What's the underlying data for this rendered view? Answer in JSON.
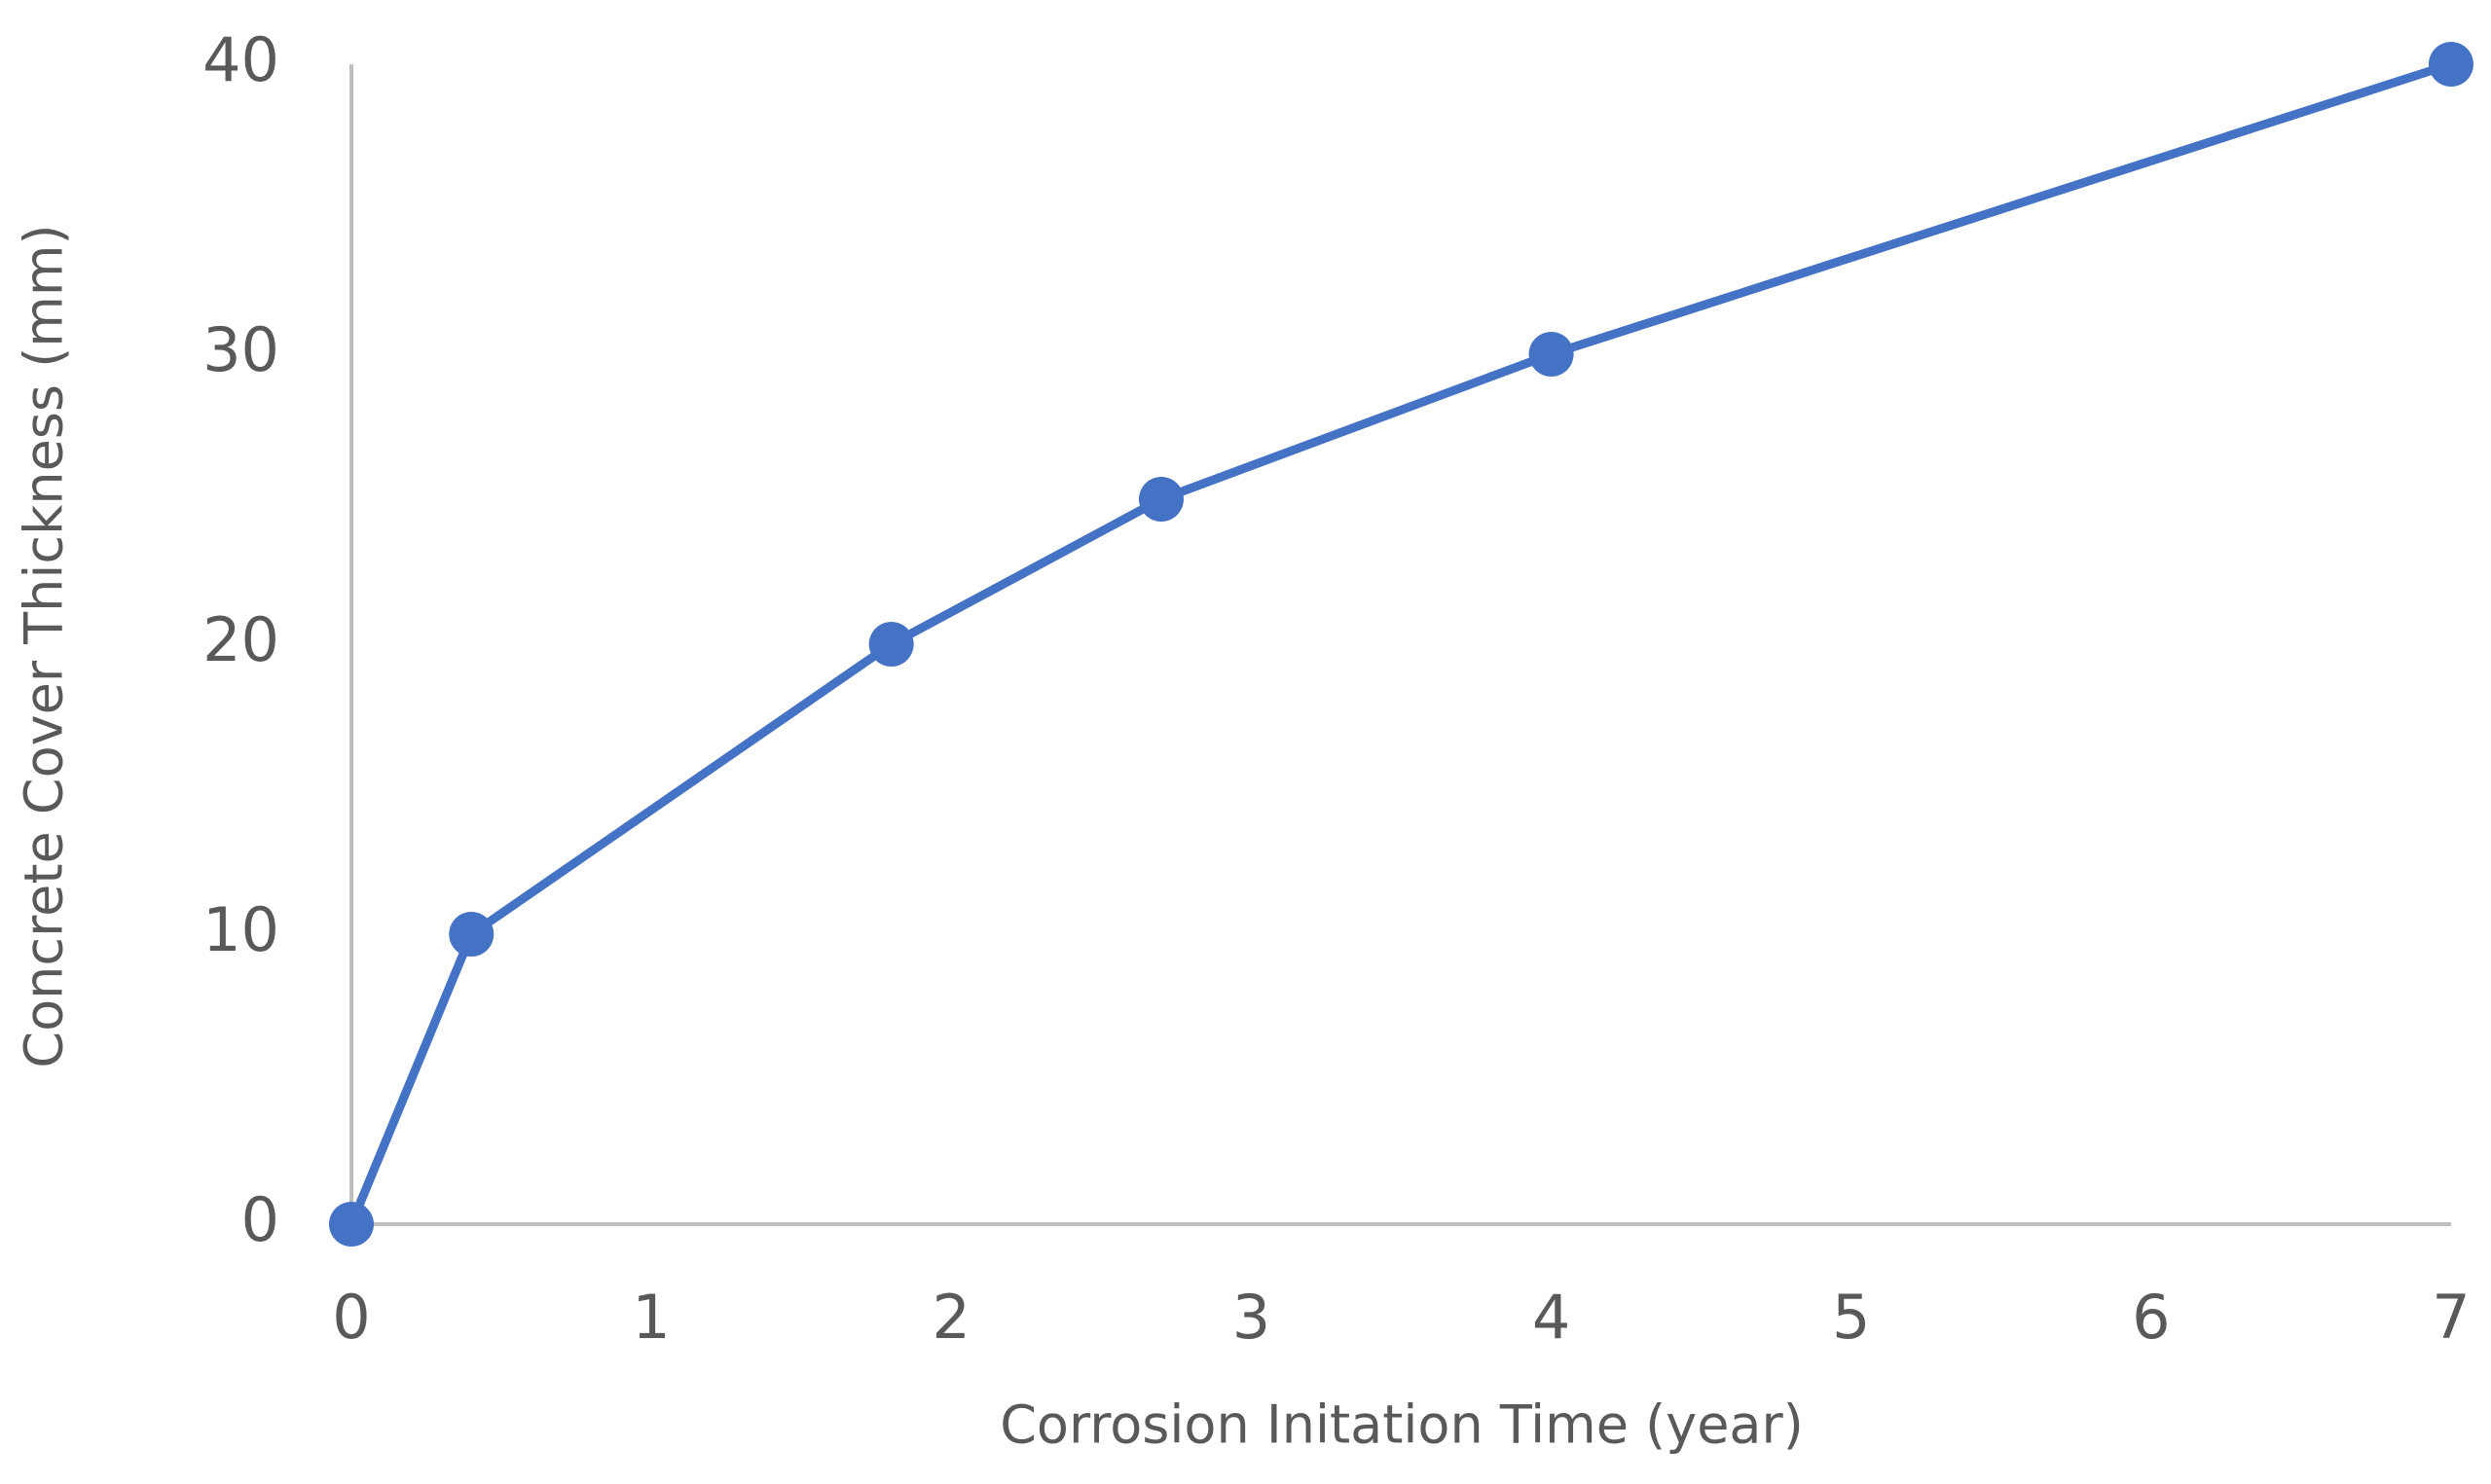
{
  "chart_data": {
    "type": "line",
    "x_label": "Corrosion Initation Time (year)",
    "y_label": "Concrete Cover Thickness (mm)",
    "x": [
      0,
      0.4,
      1.8,
      2.7,
      4,
      7
    ],
    "series": [
      {
        "color": "#4472c4",
        "values": [
          0,
          10,
          20,
          25,
          30,
          40
        ]
      }
    ],
    "xlim": [
      0,
      7
    ],
    "xticks": [
      0,
      1,
      2,
      3,
      4,
      5,
      6,
      7
    ],
    "ylim": [
      0,
      40
    ],
    "yticks": [
      0,
      10,
      20,
      30,
      40
    ],
    "grid": false,
    "markers": true
  }
}
